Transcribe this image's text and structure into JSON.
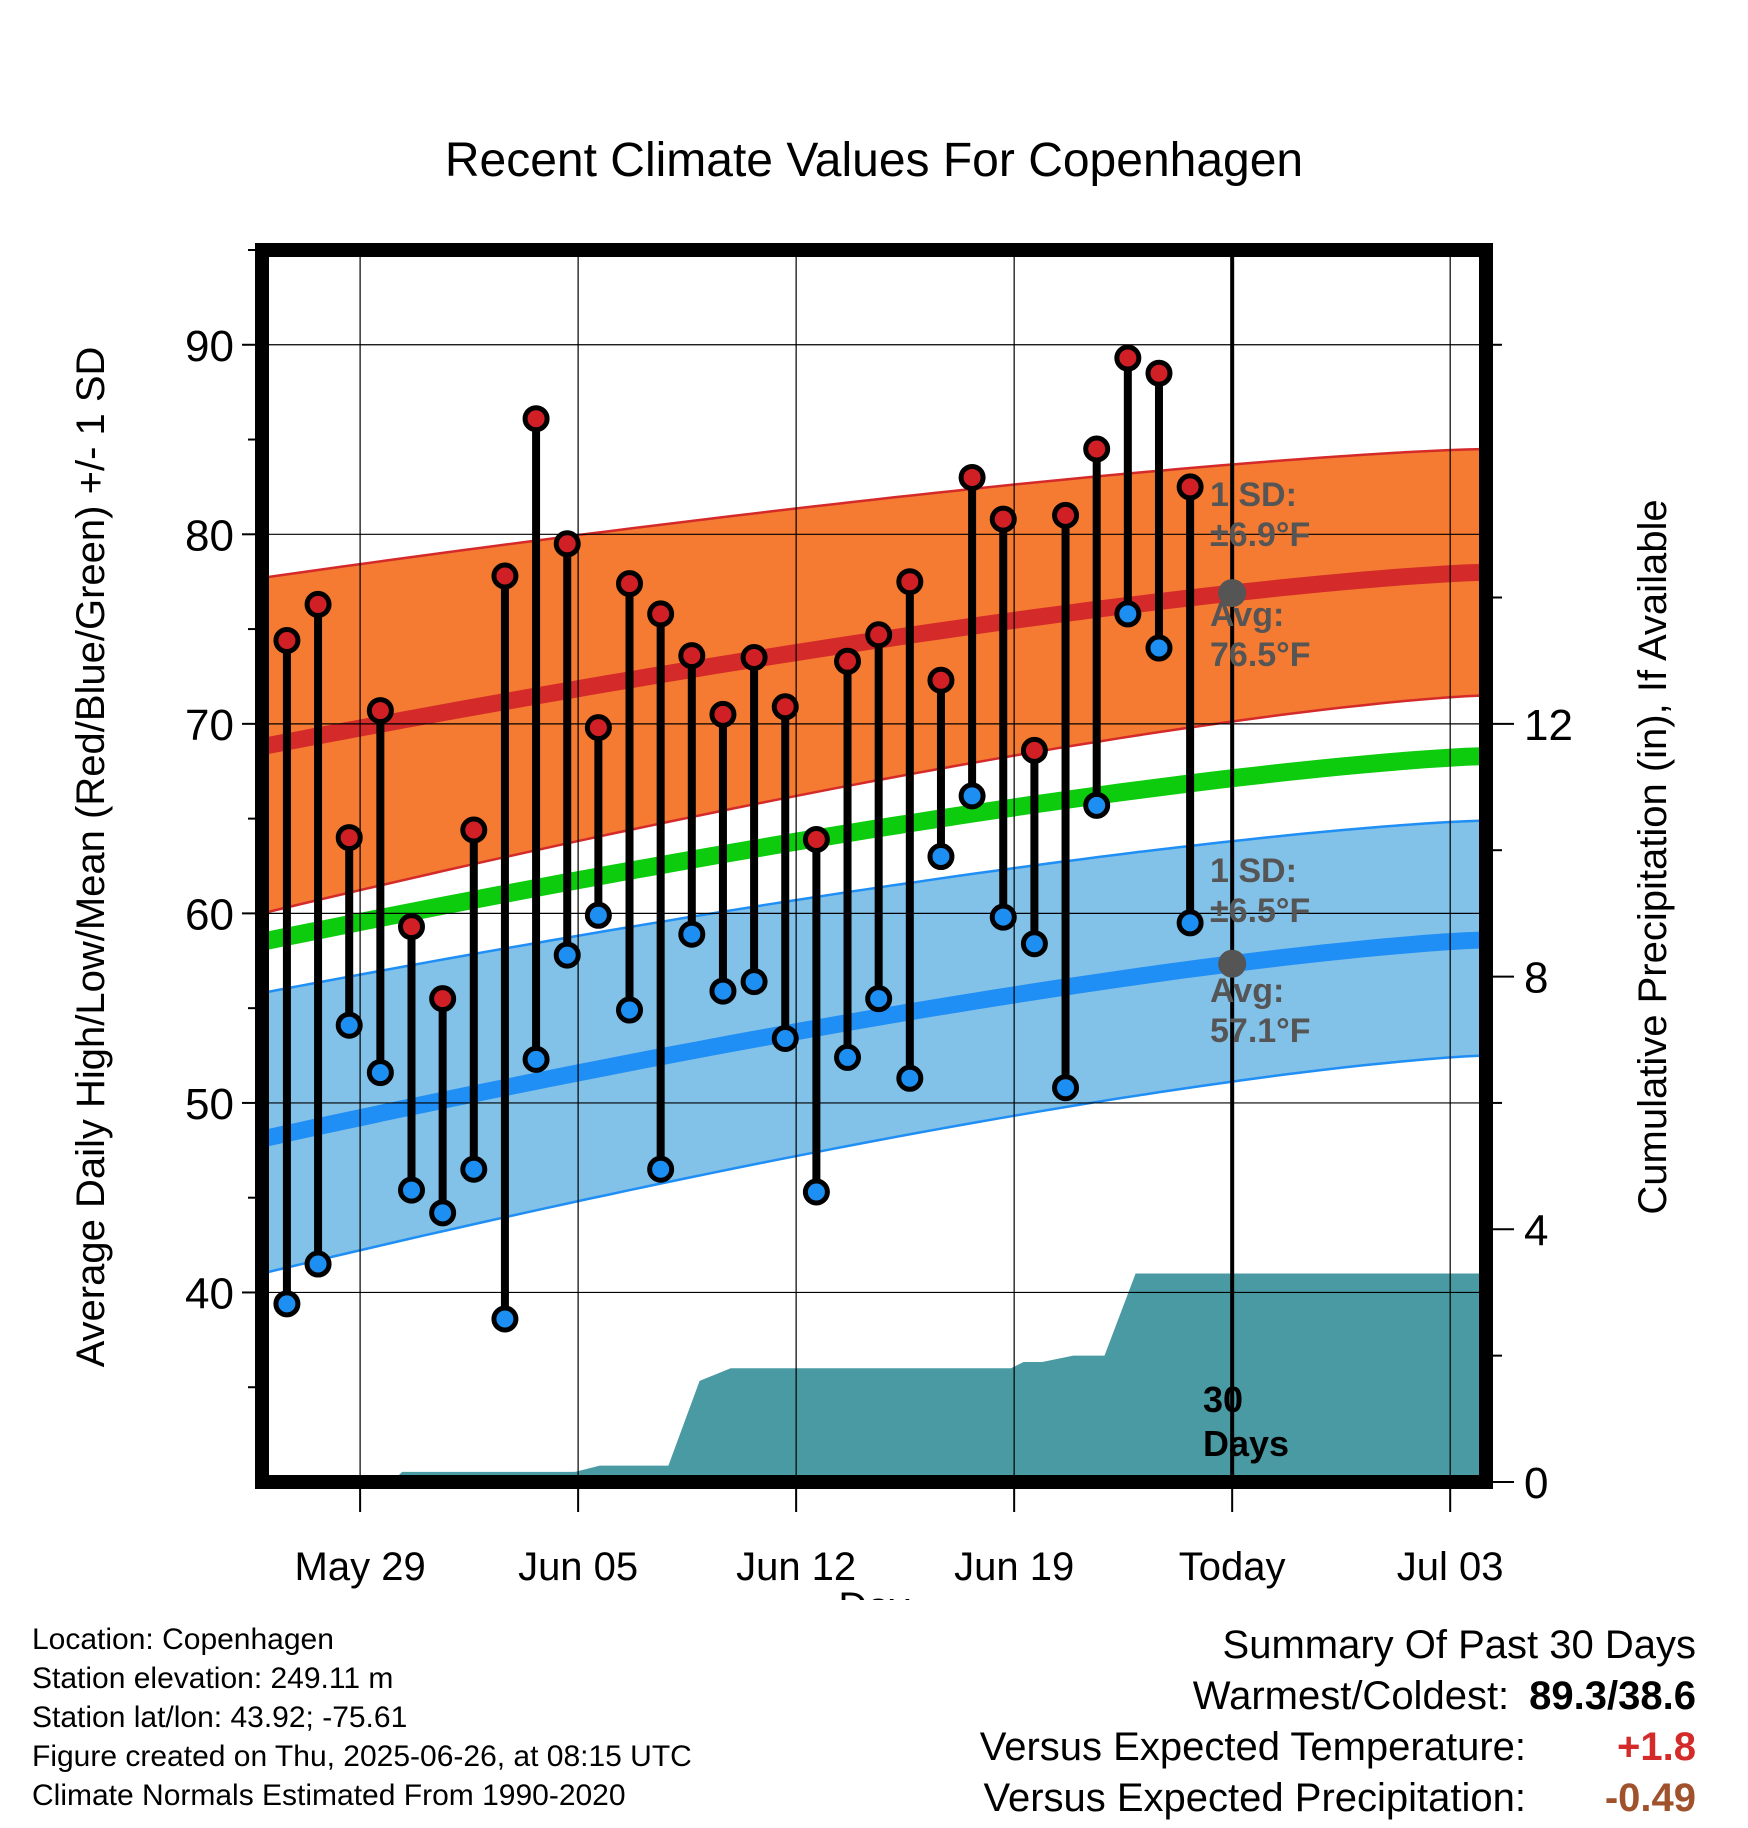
{
  "chart_data": {
    "type": "line",
    "title": "Recent Climate Values For Copenhagen",
    "xlabel": "Day",
    "ylabel": "Average Daily High/Low/Mean (Red/Blue/Green) +/- 1 SD",
    "y2label": "Cumulative Precipitation (in), If Available",
    "x_tick_labels": [
      "May 29",
      "Jun 05",
      "Jun 12",
      "Jun 19",
      "Today",
      "Jul 03"
    ],
    "x_tick_days": [
      2,
      9,
      16,
      23,
      30,
      37
    ],
    "xlim": [
      -1.15,
      38.15
    ],
    "ylim": [
      30,
      95
    ],
    "y_ticks": [
      40,
      50,
      60,
      70,
      80,
      90
    ],
    "y2lim": [
      0,
      19.5
    ],
    "y2_ticks": [
      0,
      4,
      8,
      12
    ],
    "grid": true,
    "today_day": 30,
    "window_label": "30 Days",
    "days": [
      -0.35,
      0.65,
      1.65,
      2.65,
      3.65,
      4.65,
      5.65,
      6.65,
      7.65,
      8.65,
      9.65,
      10.65,
      11.65,
      12.65,
      13.65,
      14.65,
      15.65,
      16.65,
      17.65,
      18.65,
      19.65,
      20.65,
      21.65,
      22.65,
      23.65,
      24.65,
      25.65,
      26.65,
      27.65,
      28.65
    ],
    "highs": [
      74.4,
      76.3,
      64.0,
      70.7,
      59.3,
      55.5,
      64.4,
      77.8,
      86.1,
      79.5,
      69.8,
      77.4,
      75.8,
      73.6,
      70.5,
      73.5,
      70.9,
      63.9,
      73.3,
      74.7,
      77.5,
      72.3,
      83.0,
      80.8,
      68.6,
      81.0,
      84.5,
      89.3,
      88.5,
      82.5
    ],
    "lows": [
      39.4,
      41.5,
      54.1,
      51.6,
      45.4,
      44.2,
      46.5,
      38.6,
      52.3,
      57.8,
      59.9,
      54.9,
      46.5,
      58.9,
      55.9,
      56.4,
      53.4,
      45.3,
      52.4,
      55.5,
      51.3,
      63.0,
      66.2,
      59.8,
      58.4,
      50.8,
      65.7,
      75.8,
      74.0,
      59.5
    ],
    "normal_high": {
      "name": "Avg: 76.5°F",
      "sd_label": "1 SD: ±6.9°F",
      "start": 68.8,
      "end": 78.0
    },
    "normal_low": {
      "name": "Avg: 57.1°F",
      "sd_label": "1 SD: ±6.5°F",
      "start": 48.1,
      "end": 58.6
    },
    "normal_mean": {
      "start": 58.5,
      "end": 68.3
    },
    "high_sd_bounds": {
      "upper_start": 77.7,
      "upper_end": 84.5,
      "lower_start": 60.0,
      "lower_end": 71.5
    },
    "low_sd_bounds": {
      "upper_start": 55.8,
      "upper_end": 64.9,
      "lower_start": 41.0,
      "lower_end": 52.5
    },
    "precip_cumulative": {
      "x": [
        -1.15,
        3.0,
        3.35,
        8.9,
        9.7,
        11.9,
        12.9,
        13.9,
        22.9,
        23.3,
        23.9,
        24.9,
        25.9,
        26.9,
        38.15
      ],
      "y": [
        0.0,
        0.0,
        0.16,
        0.16,
        0.26,
        0.26,
        1.6,
        1.8,
        1.8,
        1.9,
        1.9,
        2.0,
        2.0,
        3.3,
        3.3
      ]
    },
    "colors": {
      "high_band": "#f47b31",
      "high_line": "#d42a2a",
      "low_band": "#82c1e8",
      "low_line": "#1f8ef5",
      "mean_line": "#0dcc0d",
      "precip": "#4a9aa3",
      "high_dot": "#d11f26",
      "low_dot": "#1e8ff2",
      "avg_text": "#555555"
    }
  },
  "info": {
    "location": "Location: Copenhagen",
    "elevation": "Station elevation: 249.11 m",
    "latlon": "Station lat/lon: 43.92; -75.61",
    "created": "Figure created on Thu, 2025-06-26, at 08:15 UTC",
    "normals": "Climate Normals Estimated From 1990-2020"
  },
  "summary": {
    "title": "Summary Of Past 30 Days",
    "warm_cold_label": "Warmest/Coldest:",
    "warm_cold_value": "89.3/38.6",
    "temp_label": "Versus Expected Temperature:",
    "temp_value": "+1.8",
    "temp_color": "#d42a2a",
    "precip_label": "Versus Expected Precipitation:",
    "precip_value": "-0.49",
    "precip_color": "#a0522d"
  }
}
